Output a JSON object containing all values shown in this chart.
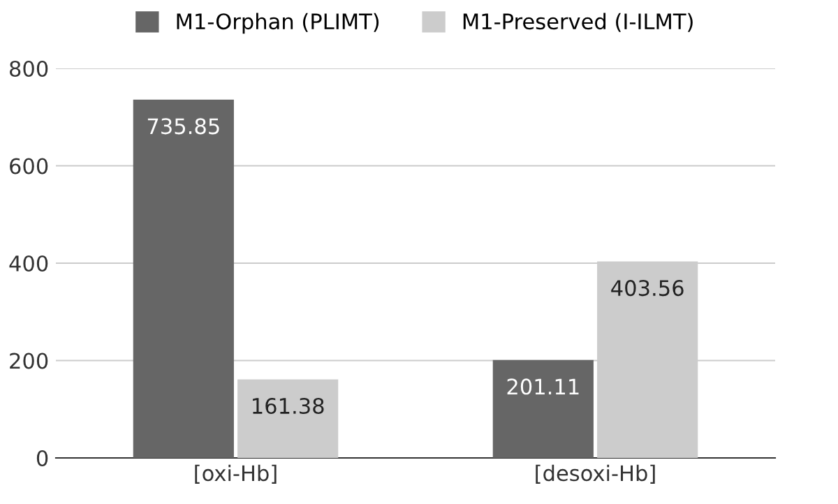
{
  "chart_data": {
    "type": "bar",
    "categories": [
      "[oxi-Hb]",
      "[desoxi-Hb]"
    ],
    "series": [
      {
        "name": "M1-Orphan (PLIMT)",
        "color": "#666666",
        "values": [
          735.85,
          201.11
        ]
      },
      {
        "name": "M1-Preserved (I-ILMT)",
        "color": "#cccccc",
        "values": [
          161.38,
          403.56
        ]
      }
    ],
    "ylim": [
      0,
      800
    ],
    "yticks": [
      0,
      200,
      400,
      600,
      800
    ],
    "grid": "y",
    "legend": "top",
    "data_labels": true
  }
}
